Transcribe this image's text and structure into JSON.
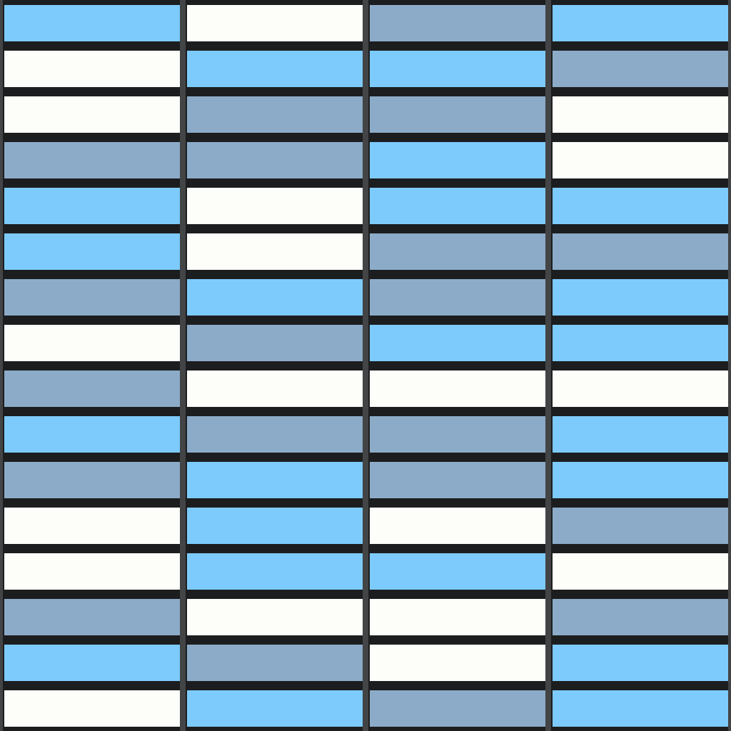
{
  "palette": {
    "sky": "#7dcbfd",
    "slate": "#8cabc8",
    "white": "#fdfefa",
    "row_gap": "#1c1d1f",
    "column_divider": "#434446"
  },
  "board": {
    "columns": [
      [
        "sky",
        "white",
        "white",
        "slate",
        "sky",
        "sky",
        "slate",
        "white",
        "slate",
        "sky",
        "slate",
        "white",
        "white",
        "slate",
        "sky",
        "white"
      ],
      [
        "white",
        "sky",
        "slate",
        "slate",
        "white",
        "white",
        "sky",
        "slate",
        "white",
        "slate",
        "sky",
        "sky",
        "sky",
        "white",
        "slate",
        "sky"
      ],
      [
        "slate",
        "sky",
        "slate",
        "sky",
        "sky",
        "slate",
        "slate",
        "sky",
        "white",
        "slate",
        "slate",
        "white",
        "sky",
        "white",
        "white",
        "slate"
      ],
      [
        "sky",
        "slate",
        "white",
        "white",
        "sky",
        "slate",
        "sky",
        "sky",
        "white",
        "sky",
        "sky",
        "slate",
        "white",
        "slate",
        "sky",
        "sky"
      ]
    ]
  }
}
